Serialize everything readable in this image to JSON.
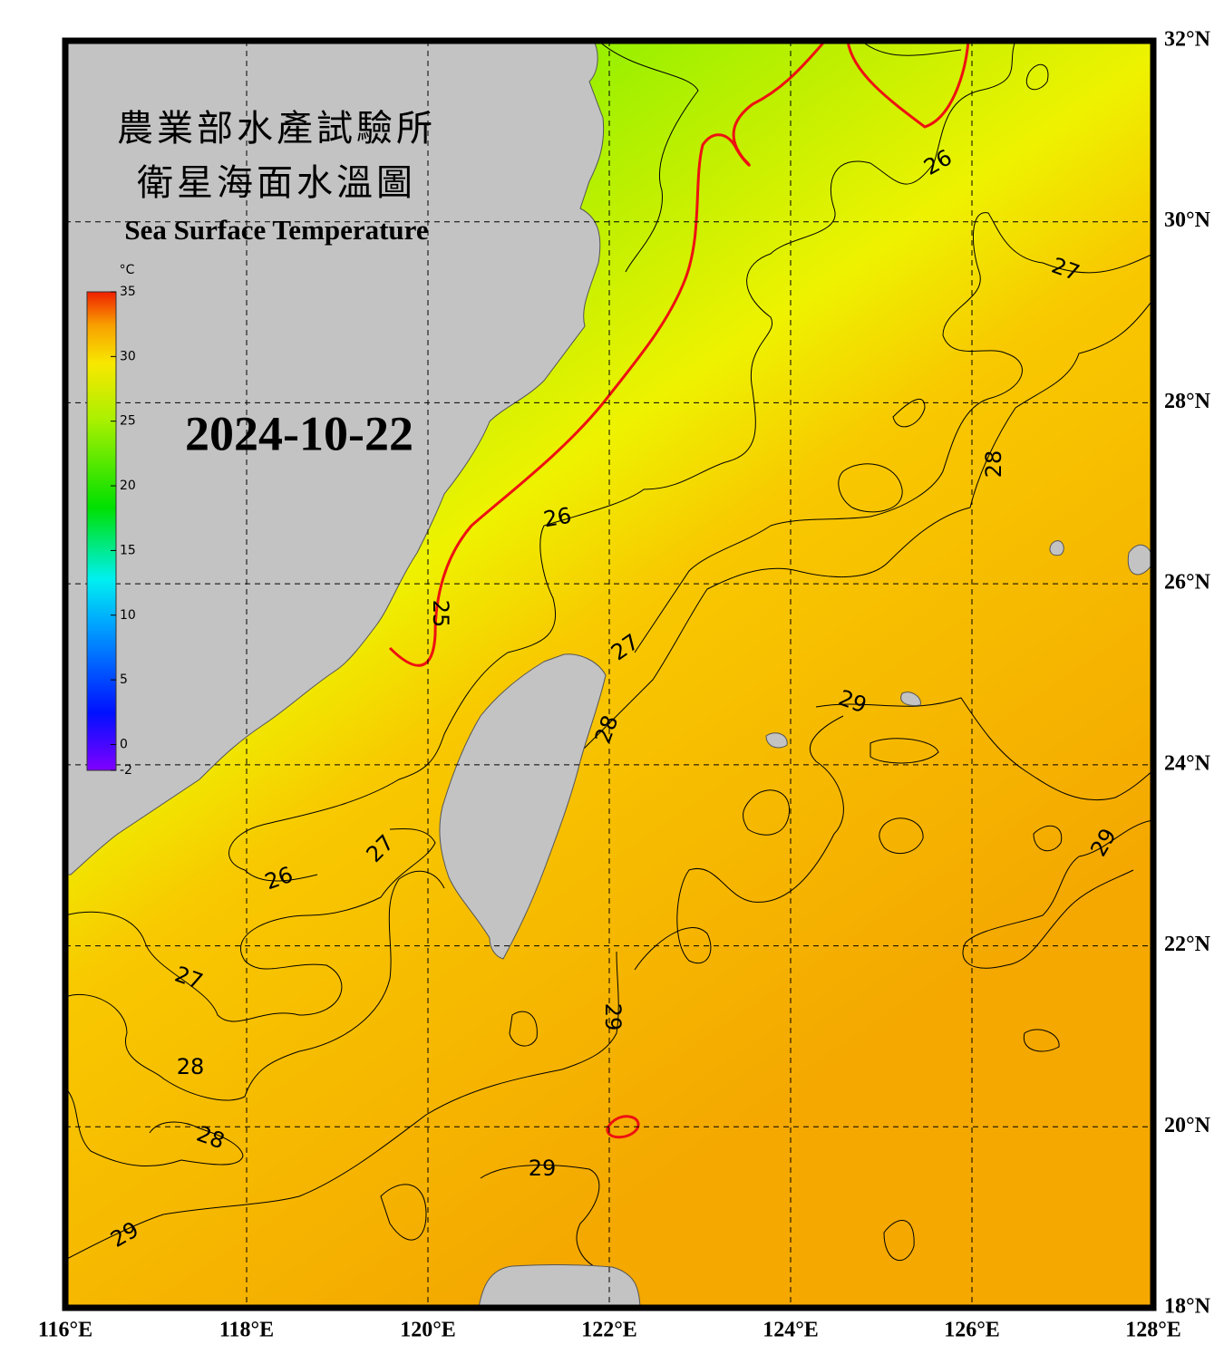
{
  "header": {
    "title_line1": "農業部水產試驗所",
    "title_line2": "衛星海面水溫圖",
    "title_en": "Sea Surface Temperature",
    "date": "2024-10-22"
  },
  "colorbar": {
    "unit": "°C",
    "range": [
      -2,
      35
    ],
    "ticks": [
      35,
      30,
      25,
      20,
      15,
      10,
      5,
      0,
      -2
    ]
  },
  "map": {
    "xlim": [
      116,
      128
    ],
    "ylim": [
      18,
      32
    ],
    "xticks": [
      {
        "value": 116,
        "label": "116°E"
      },
      {
        "value": 118,
        "label": "118°E"
      },
      {
        "value": 120,
        "label": "120°E"
      },
      {
        "value": 122,
        "label": "122°E"
      },
      {
        "value": 124,
        "label": "124°E"
      },
      {
        "value": 126,
        "label": "126°E"
      },
      {
        "value": 128,
        "label": "128°E"
      }
    ],
    "yticks": [
      {
        "value": 32,
        "label": "32°N"
      },
      {
        "value": 30,
        "label": "30°N"
      },
      {
        "value": 28,
        "label": "28°N"
      },
      {
        "value": 26,
        "label": "26°N"
      },
      {
        "value": 24,
        "label": "24°N"
      },
      {
        "value": 22,
        "label": "22°N"
      },
      {
        "value": 20,
        "label": "20°N"
      },
      {
        "value": 18,
        "label": "18°N"
      }
    ],
    "contour_labels": [
      26,
      27,
      28,
      26,
      25,
      27,
      28,
      29,
      29,
      27,
      26,
      27,
      28,
      28,
      29,
      29,
      29
    ]
  }
}
